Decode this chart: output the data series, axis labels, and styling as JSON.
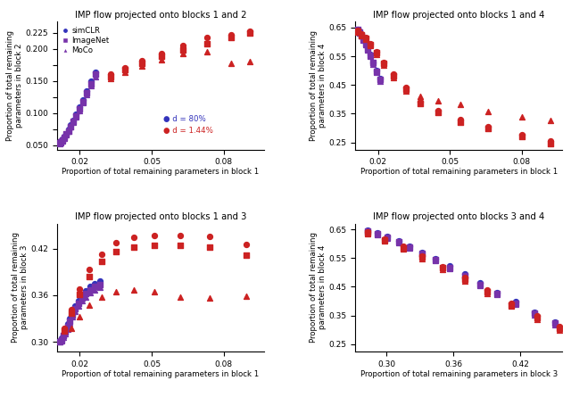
{
  "titles": [
    "IMP flow projected onto blocks 1 and 2",
    "IMP flow projected onto blocks 1 and 4",
    "IMP flow projected onto blocks 1 and 3",
    "IMP flow projected onto blocks 3 and 4"
  ],
  "xlabels": [
    "Proportion of total remaining parameters in block 1",
    "Proportion of total remaining parameters in block 1",
    "Proportion of total remaining parameters in block 1",
    "Proportion of total remaining parameters in block 3"
  ],
  "ylabels": [
    "Proportion of total remaining\nparameters in block 2",
    "Proportion of total remaining\nparameters in block 4",
    "Proportion of total remaining\nparameters in block 3",
    "Proportion of total remaining\nparameters in block 4"
  ],
  "colors": {
    "blue": "#3333bb",
    "purple": "#7733aa",
    "red": "#cc2222"
  },
  "subplot_configs": [
    {
      "xlim": [
        0.0105,
        0.097
      ],
      "ylim": [
        0.043,
        0.242
      ],
      "xticks": [
        0.02,
        0.05,
        0.08
      ],
      "yticks": [
        0.05,
        0.075,
        0.1,
        0.125,
        0.15,
        0.175,
        0.2,
        0.225
      ],
      "ytick_labels": [
        "0.050",
        "",
        "0.100",
        "",
        "0.150",
        "",
        "0.200",
        "0.225"
      ],
      "legend_loc": "upper left",
      "d_annot": true
    },
    {
      "xlim": [
        0.0105,
        0.097
      ],
      "ylim": [
        0.225,
        0.67
      ],
      "xticks": [
        0.02,
        0.05,
        0.08
      ],
      "yticks": [
        0.25,
        0.35,
        0.45,
        0.55,
        0.65
      ],
      "ytick_labels": [
        "0.25",
        "0.35",
        "0.45",
        "0.55",
        "0.65"
      ],
      "legend_loc": null,
      "d_annot": false
    },
    {
      "xlim": [
        0.0105,
        0.097
      ],
      "ylim": [
        0.288,
        0.452
      ],
      "xticks": [
        0.02,
        0.05,
        0.08
      ],
      "yticks": [
        0.3,
        0.36,
        0.42
      ],
      "ytick_labels": [
        "0.30",
        "0.36",
        "0.42"
      ],
      "legend_loc": null,
      "d_annot": false
    },
    {
      "xlim": [
        0.272,
        0.458
      ],
      "ylim": [
        0.225,
        0.67
      ],
      "xticks": [
        0.3,
        0.36,
        0.42
      ],
      "yticks": [
        0.25,
        0.35,
        0.45,
        0.55,
        0.65
      ],
      "ytick_labels": [
        "0.25",
        "0.35",
        "0.45",
        "0.55",
        "0.65"
      ],
      "legend_loc": null,
      "d_annot": false
    }
  ],
  "data": {
    "plot0": {
      "blue_circle_x": [
        0.0115,
        0.0121,
        0.0128,
        0.0135,
        0.0143,
        0.0152,
        0.0162,
        0.0173,
        0.0185,
        0.0198,
        0.0213,
        0.0229,
        0.0247,
        0.0267
      ],
      "blue_circle_y": [
        0.053,
        0.056,
        0.059,
        0.063,
        0.068,
        0.074,
        0.081,
        0.089,
        0.098,
        0.109,
        0.121,
        0.134,
        0.149,
        0.164
      ],
      "purple_square_x": [
        0.0115,
        0.0121,
        0.0128,
        0.0135,
        0.0143,
        0.0152,
        0.0162,
        0.0173,
        0.0185,
        0.0198,
        0.0213,
        0.0229,
        0.0247,
        0.0267
      ],
      "purple_square_y": [
        0.053,
        0.055,
        0.058,
        0.062,
        0.067,
        0.072,
        0.079,
        0.087,
        0.096,
        0.106,
        0.118,
        0.131,
        0.146,
        0.161
      ],
      "purple_triangle_x": [
        0.0115,
        0.0121,
        0.0128,
        0.0135,
        0.0143,
        0.0152,
        0.0162,
        0.0173,
        0.0185,
        0.0198,
        0.0213,
        0.0229,
        0.0247,
        0.0267
      ],
      "purple_triangle_y": [
        0.052,
        0.054,
        0.057,
        0.061,
        0.066,
        0.071,
        0.078,
        0.085,
        0.094,
        0.104,
        0.116,
        0.129,
        0.143,
        0.157
      ],
      "red_circle_x": [
        0.033,
        0.039,
        0.046,
        0.054,
        0.063,
        0.073,
        0.083,
        0.091
      ],
      "red_circle_y": [
        0.16,
        0.17,
        0.182,
        0.192,
        0.205,
        0.218,
        0.222,
        0.228
      ],
      "red_square_x": [
        0.033,
        0.039,
        0.046,
        0.054,
        0.063,
        0.073,
        0.083,
        0.091
      ],
      "red_square_y": [
        0.157,
        0.167,
        0.178,
        0.188,
        0.198,
        0.208,
        0.218,
        0.225
      ],
      "red_triangle_x": [
        0.033,
        0.039,
        0.046,
        0.054,
        0.063,
        0.073,
        0.083,
        0.091
      ],
      "red_triangle_y": [
        0.154,
        0.163,
        0.173,
        0.183,
        0.192,
        0.195,
        0.178,
        0.18
      ]
    },
    "plot1": {
      "blue_circle_x": [
        0.0115,
        0.0122,
        0.013,
        0.0138,
        0.0147,
        0.0157,
        0.0168,
        0.018,
        0.0193,
        0.0207
      ],
      "blue_circle_y": [
        0.645,
        0.636,
        0.626,
        0.613,
        0.597,
        0.578,
        0.556,
        0.53,
        0.502,
        0.472
      ],
      "purple_square_x": [
        0.0115,
        0.0122,
        0.013,
        0.0138,
        0.0147,
        0.0157,
        0.0168,
        0.018,
        0.0193,
        0.0207
      ],
      "purple_square_y": [
        0.643,
        0.634,
        0.623,
        0.61,
        0.594,
        0.575,
        0.553,
        0.527,
        0.498,
        0.468
      ],
      "purple_triangle_x": [
        0.0115,
        0.0122,
        0.013,
        0.0138,
        0.0147,
        0.0157,
        0.0168,
        0.018,
        0.0193,
        0.0207
      ],
      "purple_triangle_y": [
        0.641,
        0.632,
        0.621,
        0.607,
        0.591,
        0.571,
        0.549,
        0.523,
        0.494,
        0.464
      ],
      "red_circle_x": [
        0.0115,
        0.013,
        0.0147,
        0.0168,
        0.0193,
        0.0225,
        0.0265,
        0.0315,
        0.0375,
        0.045,
        0.0545,
        0.066,
        0.08,
        0.092
      ],
      "red_circle_y": [
        0.639,
        0.628,
        0.614,
        0.595,
        0.567,
        0.53,
        0.487,
        0.44,
        0.393,
        0.36,
        0.328,
        0.305,
        0.278,
        0.255
      ],
      "red_square_x": [
        0.0115,
        0.013,
        0.0147,
        0.0168,
        0.0193,
        0.0225,
        0.0265,
        0.0315,
        0.0375,
        0.045,
        0.0545,
        0.066,
        0.08,
        0.092
      ],
      "red_square_y": [
        0.637,
        0.626,
        0.611,
        0.591,
        0.563,
        0.525,
        0.482,
        0.435,
        0.387,
        0.353,
        0.32,
        0.297,
        0.27,
        0.247
      ],
      "red_triangle_x": [
        0.0115,
        0.013,
        0.0147,
        0.0168,
        0.0193,
        0.0225,
        0.0265,
        0.0315,
        0.0375,
        0.045,
        0.0545,
        0.066,
        0.08,
        0.092
      ],
      "red_triangle_y": [
        0.635,
        0.623,
        0.608,
        0.587,
        0.558,
        0.52,
        0.477,
        0.43,
        0.41,
        0.395,
        0.382,
        0.358,
        0.34,
        0.325
      ]
    },
    "plot2": {
      "blue_circle_x": [
        0.0115,
        0.0122,
        0.013,
        0.0138,
        0.0148,
        0.0158,
        0.0169,
        0.0181,
        0.0194,
        0.0209,
        0.0225,
        0.0243,
        0.0262,
        0.0284
      ],
      "blue_circle_y": [
        0.301,
        0.305,
        0.31,
        0.316,
        0.323,
        0.33,
        0.338,
        0.346,
        0.353,
        0.36,
        0.366,
        0.371,
        0.375,
        0.378
      ],
      "purple_square_x": [
        0.0115,
        0.0122,
        0.013,
        0.0138,
        0.0148,
        0.0158,
        0.0169,
        0.0181,
        0.0194,
        0.0209,
        0.0225,
        0.0243,
        0.0262,
        0.0284
      ],
      "purple_square_y": [
        0.3,
        0.303,
        0.308,
        0.313,
        0.32,
        0.327,
        0.335,
        0.343,
        0.35,
        0.357,
        0.362,
        0.367,
        0.371,
        0.374
      ],
      "purple_triangle_x": [
        0.0115,
        0.0122,
        0.013,
        0.0138,
        0.0148,
        0.0158,
        0.0169,
        0.0181,
        0.0194,
        0.0209,
        0.0225,
        0.0243,
        0.0262,
        0.0284
      ],
      "purple_triangle_y": [
        0.3,
        0.302,
        0.306,
        0.311,
        0.317,
        0.324,
        0.332,
        0.339,
        0.346,
        0.353,
        0.358,
        0.363,
        0.367,
        0.37
      ],
      "red_circle_x": [
        0.0135,
        0.0163,
        0.0198,
        0.024,
        0.0291,
        0.0352,
        0.0425,
        0.0513,
        0.0618,
        0.0744,
        0.0895
      ],
      "red_circle_y": [
        0.318,
        0.342,
        0.368,
        0.393,
        0.413,
        0.427,
        0.434,
        0.437,
        0.437,
        0.436,
        0.425
      ],
      "red_square_x": [
        0.0135,
        0.0163,
        0.0198,
        0.024,
        0.0291,
        0.0352,
        0.0425,
        0.0513,
        0.0618,
        0.0744,
        0.0895
      ],
      "red_square_y": [
        0.314,
        0.337,
        0.361,
        0.384,
        0.403,
        0.416,
        0.422,
        0.424,
        0.424,
        0.422,
        0.412
      ],
      "red_triangle_x": [
        0.0163,
        0.0198,
        0.024,
        0.0291,
        0.0352,
        0.0425,
        0.0513,
        0.0618,
        0.0744,
        0.0895
      ],
      "red_triangle_y": [
        0.318,
        0.333,
        0.347,
        0.358,
        0.364,
        0.367,
        0.364,
        0.358,
        0.356,
        0.359
      ]
    },
    "plot3": {
      "blue_circle_x": [
        0.283,
        0.292,
        0.301,
        0.311,
        0.321,
        0.332,
        0.344,
        0.357,
        0.37,
        0.384,
        0.399,
        0.416,
        0.433,
        0.451
      ],
      "blue_circle_y": [
        0.648,
        0.637,
        0.624,
        0.609,
        0.591,
        0.571,
        0.548,
        0.522,
        0.494,
        0.464,
        0.431,
        0.397,
        0.362,
        0.328
      ],
      "purple_square_x": [
        0.283,
        0.292,
        0.301,
        0.311,
        0.321,
        0.332,
        0.344,
        0.357,
        0.37,
        0.384,
        0.399,
        0.416,
        0.433,
        0.451
      ],
      "purple_square_y": [
        0.645,
        0.634,
        0.621,
        0.606,
        0.588,
        0.567,
        0.544,
        0.518,
        0.49,
        0.459,
        0.427,
        0.393,
        0.358,
        0.324
      ],
      "purple_triangle_x": [
        0.283,
        0.292,
        0.301,
        0.311,
        0.321,
        0.332,
        0.344,
        0.357,
        0.37,
        0.384,
        0.399,
        0.416,
        0.433,
        0.451
      ],
      "purple_triangle_y": [
        0.642,
        0.631,
        0.618,
        0.603,
        0.585,
        0.563,
        0.54,
        0.514,
        0.485,
        0.454,
        0.422,
        0.388,
        0.353,
        0.319
      ],
      "red_circle_x": [
        0.283,
        0.298,
        0.315,
        0.332,
        0.35,
        0.37,
        0.39,
        0.412,
        0.435,
        0.455
      ],
      "red_circle_y": [
        0.64,
        0.617,
        0.59,
        0.558,
        0.521,
        0.481,
        0.438,
        0.393,
        0.348,
        0.31
      ],
      "red_square_x": [
        0.283,
        0.298,
        0.315,
        0.332,
        0.35,
        0.37,
        0.39,
        0.412,
        0.435,
        0.455
      ],
      "red_square_y": [
        0.637,
        0.613,
        0.585,
        0.553,
        0.516,
        0.475,
        0.432,
        0.387,
        0.342,
        0.304
      ],
      "red_triangle_x": [
        0.283,
        0.298,
        0.315,
        0.332,
        0.35,
        0.37,
        0.39,
        0.412,
        0.435,
        0.455
      ],
      "red_triangle_y": [
        0.634,
        0.61,
        0.581,
        0.548,
        0.511,
        0.47,
        0.427,
        0.383,
        0.337,
        0.3
      ]
    }
  }
}
